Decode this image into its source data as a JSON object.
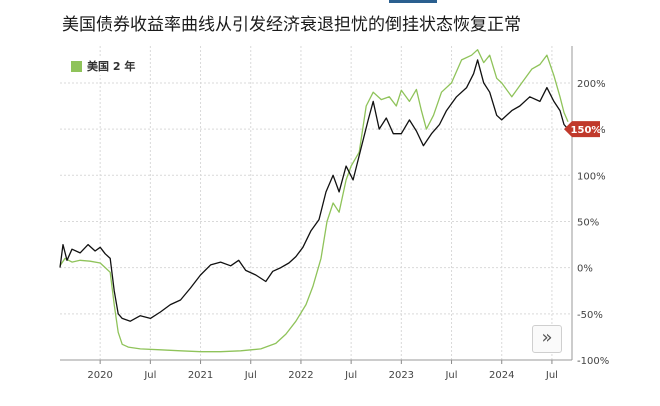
{
  "header": {
    "title": "美国债券收益率曲线从引发经济衰退担忧的倒挂状态恢复正常"
  },
  "colors": {
    "series_green": "#8fc35a",
    "series_black": "#111111",
    "badge": "#c0392b",
    "grid": "#d9d9d9"
  },
  "nav": {
    "next_icon": "double-chevron-right-icon",
    "next_label": "»"
  },
  "chart_data": {
    "type": "line",
    "title": "美国债券收益率曲线从引发经济衰退担忧的倒挂状态恢复正常",
    "xlabel": "",
    "ylabel": "",
    "legend": {
      "position": "top-left",
      "entries": [
        "美国 2 年"
      ]
    },
    "grid": true,
    "x_range": [
      2019.6,
      2024.7
    ],
    "ylim": [
      -100,
      240
    ],
    "y_ticks": [
      -100,
      -50,
      0,
      50,
      100,
      150,
      200
    ],
    "y_tick_labels": [
      "-100%",
      "-50%",
      "0%",
      "50%",
      "100%",
      "150%",
      "200%"
    ],
    "x_ticks": [
      {
        "x": 2020.0,
        "label": "2020"
      },
      {
        "x": 2020.5,
        "label": "Jul"
      },
      {
        "x": 2021.0,
        "label": "2021"
      },
      {
        "x": 2021.5,
        "label": "Jul"
      },
      {
        "x": 2022.0,
        "label": "2022"
      },
      {
        "x": 2022.5,
        "label": "Jul"
      },
      {
        "x": 2023.0,
        "label": "2023"
      },
      {
        "x": 2023.5,
        "label": "Jul"
      },
      {
        "x": 2024.0,
        "label": "2024"
      },
      {
        "x": 2024.5,
        "label": "Jul"
      }
    ],
    "last_value_label": "150%",
    "series": [
      {
        "name": "美国 2 年",
        "color": "#8fc35a",
        "points": [
          [
            2019.6,
            2
          ],
          [
            2019.65,
            10
          ],
          [
            2019.72,
            6
          ],
          [
            2019.8,
            8
          ],
          [
            2019.9,
            7
          ],
          [
            2020.0,
            5
          ],
          [
            2020.05,
            0
          ],
          [
            2020.1,
            -5
          ],
          [
            2020.14,
            -40
          ],
          [
            2020.18,
            -70
          ],
          [
            2020.22,
            -83
          ],
          [
            2020.28,
            -86
          ],
          [
            2020.4,
            -88
          ],
          [
            2020.6,
            -89
          ],
          [
            2020.8,
            -90
          ],
          [
            2021.0,
            -91
          ],
          [
            2021.2,
            -91
          ],
          [
            2021.4,
            -90
          ],
          [
            2021.6,
            -88
          ],
          [
            2021.75,
            -82
          ],
          [
            2021.85,
            -72
          ],
          [
            2021.95,
            -58
          ],
          [
            2022.05,
            -40
          ],
          [
            2022.12,
            -20
          ],
          [
            2022.2,
            10
          ],
          [
            2022.26,
            50
          ],
          [
            2022.32,
            70
          ],
          [
            2022.38,
            60
          ],
          [
            2022.45,
            95
          ],
          [
            2022.5,
            110
          ],
          [
            2022.58,
            125
          ],
          [
            2022.65,
            175
          ],
          [
            2022.72,
            190
          ],
          [
            2022.8,
            182
          ],
          [
            2022.88,
            185
          ],
          [
            2022.95,
            175
          ],
          [
            2023.0,
            192
          ],
          [
            2023.08,
            180
          ],
          [
            2023.15,
            193
          ],
          [
            2023.2,
            170
          ],
          [
            2023.25,
            150
          ],
          [
            2023.32,
            165
          ],
          [
            2023.4,
            190
          ],
          [
            2023.5,
            200
          ],
          [
            2023.6,
            225
          ],
          [
            2023.7,
            230
          ],
          [
            2023.76,
            236
          ],
          [
            2023.82,
            222
          ],
          [
            2023.88,
            230
          ],
          [
            2023.95,
            205
          ],
          [
            2024.0,
            200
          ],
          [
            2024.1,
            185
          ],
          [
            2024.2,
            200
          ],
          [
            2024.3,
            215
          ],
          [
            2024.38,
            220
          ],
          [
            2024.45,
            230
          ],
          [
            2024.52,
            208
          ],
          [
            2024.58,
            185
          ],
          [
            2024.62,
            168
          ],
          [
            2024.66,
            158
          ]
        ]
      },
      {
        "name": "",
        "color": "#111111",
        "points": [
          [
            2019.6,
            0
          ],
          [
            2019.63,
            25
          ],
          [
            2019.67,
            8
          ],
          [
            2019.72,
            20
          ],
          [
            2019.8,
            16
          ],
          [
            2019.88,
            25
          ],
          [
            2019.95,
            18
          ],
          [
            2020.0,
            22
          ],
          [
            2020.05,
            15
          ],
          [
            2020.1,
            10
          ],
          [
            2020.14,
            -25
          ],
          [
            2020.18,
            -50
          ],
          [
            2020.22,
            -55
          ],
          [
            2020.3,
            -58
          ],
          [
            2020.4,
            -52
          ],
          [
            2020.5,
            -55
          ],
          [
            2020.6,
            -48
          ],
          [
            2020.7,
            -40
          ],
          [
            2020.8,
            -35
          ],
          [
            2020.9,
            -22
          ],
          [
            2021.0,
            -8
          ],
          [
            2021.1,
            3
          ],
          [
            2021.2,
            6
          ],
          [
            2021.3,
            2
          ],
          [
            2021.38,
            8
          ],
          [
            2021.45,
            -3
          ],
          [
            2021.55,
            -8
          ],
          [
            2021.65,
            -15
          ],
          [
            2021.72,
            -4
          ],
          [
            2021.8,
            0
          ],
          [
            2021.88,
            5
          ],
          [
            2021.95,
            12
          ],
          [
            2022.02,
            22
          ],
          [
            2022.1,
            40
          ],
          [
            2022.18,
            52
          ],
          [
            2022.25,
            82
          ],
          [
            2022.32,
            100
          ],
          [
            2022.38,
            82
          ],
          [
            2022.45,
            110
          ],
          [
            2022.52,
            95
          ],
          [
            2022.6,
            130
          ],
          [
            2022.67,
            160
          ],
          [
            2022.72,
            180
          ],
          [
            2022.78,
            150
          ],
          [
            2022.85,
            162
          ],
          [
            2022.92,
            145
          ],
          [
            2023.0,
            145
          ],
          [
            2023.08,
            160
          ],
          [
            2023.15,
            148
          ],
          [
            2023.22,
            132
          ],
          [
            2023.3,
            145
          ],
          [
            2023.38,
            155
          ],
          [
            2023.45,
            170
          ],
          [
            2023.55,
            185
          ],
          [
            2023.65,
            195
          ],
          [
            2023.72,
            210
          ],
          [
            2023.76,
            225
          ],
          [
            2023.82,
            200
          ],
          [
            2023.88,
            190
          ],
          [
            2023.95,
            165
          ],
          [
            2024.0,
            160
          ],
          [
            2024.1,
            170
          ],
          [
            2024.18,
            175
          ],
          [
            2024.28,
            185
          ],
          [
            2024.38,
            180
          ],
          [
            2024.45,
            195
          ],
          [
            2024.52,
            180
          ],
          [
            2024.58,
            170
          ],
          [
            2024.62,
            155
          ],
          [
            2024.66,
            150
          ]
        ]
      }
    ]
  }
}
